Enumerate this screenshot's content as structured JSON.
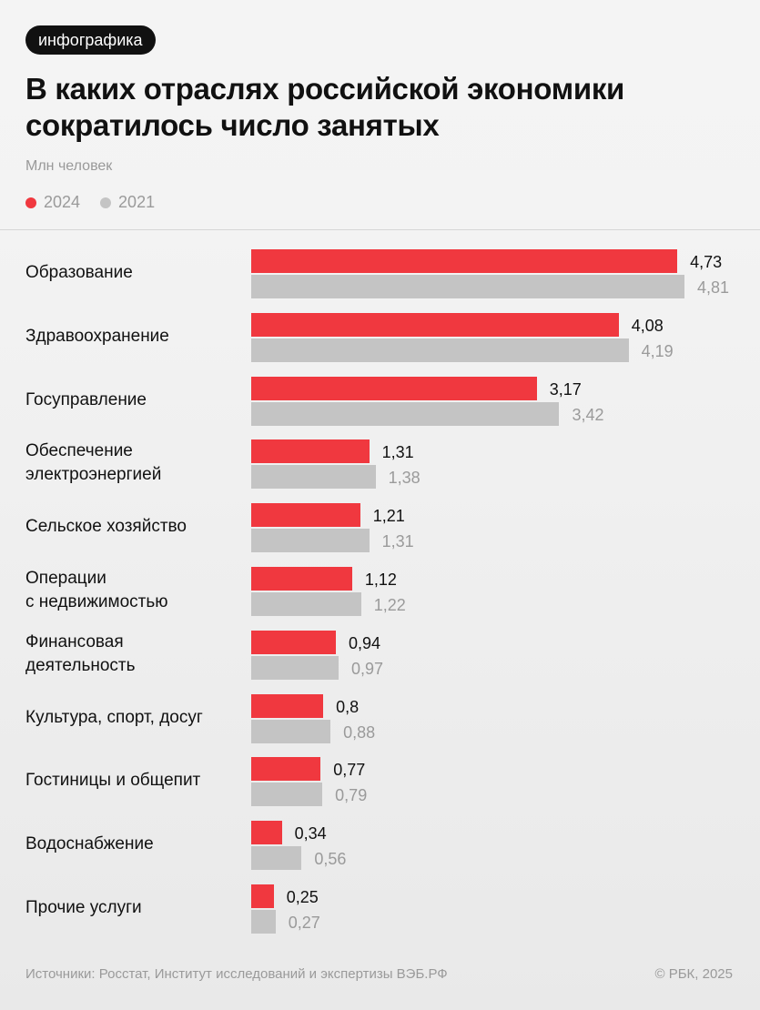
{
  "tag": "инфографика",
  "title": "В каких отраслях российской экономики сократилось число занятых",
  "unit": "Млн человек",
  "legend": [
    {
      "label": "2024",
      "color": "#f0383f"
    },
    {
      "label": "2021",
      "color": "#c4c4c4"
    }
  ],
  "chart_data": {
    "type": "bar",
    "orientation": "horizontal",
    "categories": [
      "Образование",
      "Здравоохранение",
      "Госуправление",
      "Обеспечение\nэлектроэнергией",
      "Сельское хозяйство",
      "Операции\nс недвижимостью",
      "Финансовая\nдеятельность",
      "Культура, спорт, досуг",
      "Гостиницы и общепит",
      "Водоснабжение",
      "Прочие услуги"
    ],
    "series": [
      {
        "name": "2024",
        "color": "#f0383f",
        "values": [
          4.73,
          4.08,
          3.17,
          1.31,
          1.21,
          1.12,
          0.94,
          0.8,
          0.77,
          0.34,
          0.25
        ],
        "labels": [
          "4,73",
          "4,08",
          "3,17",
          "1,31",
          "1,21",
          "1,12",
          "0,94",
          "0,8",
          "0,77",
          "0,34",
          "0,25"
        ]
      },
      {
        "name": "2021",
        "color": "#c4c4c4",
        "values": [
          4.81,
          4.19,
          3.42,
          1.38,
          1.31,
          1.22,
          0.97,
          0.88,
          0.79,
          0.56,
          0.27
        ],
        "labels": [
          "4,81",
          "4,19",
          "3,42",
          "1,38",
          "1,31",
          "1,22",
          "0,97",
          "0,88",
          "0,79",
          "0,56",
          "0,27"
        ]
      }
    ]
  },
  "footer": {
    "source": "Источники: Росстат, Институт исследований и экспертизы ВЭБ.РФ",
    "copyright": "© РБК, 2025"
  }
}
